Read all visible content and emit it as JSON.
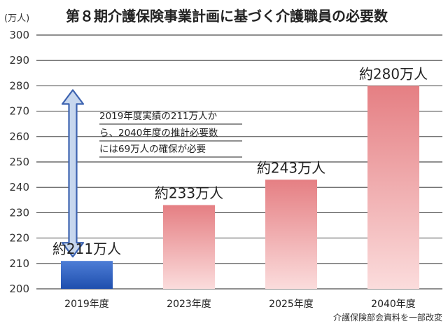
{
  "chart_data": {
    "type": "bar",
    "title": "第８期介護保険事業計画に基づく介護職員の必要数",
    "unit_label": "(万人)",
    "categories": [
      "2019年度",
      "2023年度",
      "2025年度",
      "2040年度"
    ],
    "values": [
      211,
      233,
      243,
      280
    ],
    "data_labels": [
      "約211万人",
      "約233万人",
      "約243万人",
      "約280万人"
    ],
    "ylim": [
      200,
      300
    ],
    "yticks": [
      200,
      210,
      220,
      230,
      240,
      250,
      260,
      270,
      280,
      290,
      300
    ],
    "grid": true,
    "annotation_lines": [
      "2019年度実績の211万人か",
      "ら、2040年度の推計必要数",
      "には69万人の確保が必要"
    ],
    "source": "介護保険部会資料を一部改変"
  },
  "colors": {
    "first_bar_top": "#4d7dd6",
    "first_bar_bottom": "#1f4fae",
    "bar_top": "#e57f83",
    "bar_bottom": "#fbdcdc",
    "arrow_fill": "#c7d7ee",
    "arrow_stroke": "#3d63b0"
  }
}
